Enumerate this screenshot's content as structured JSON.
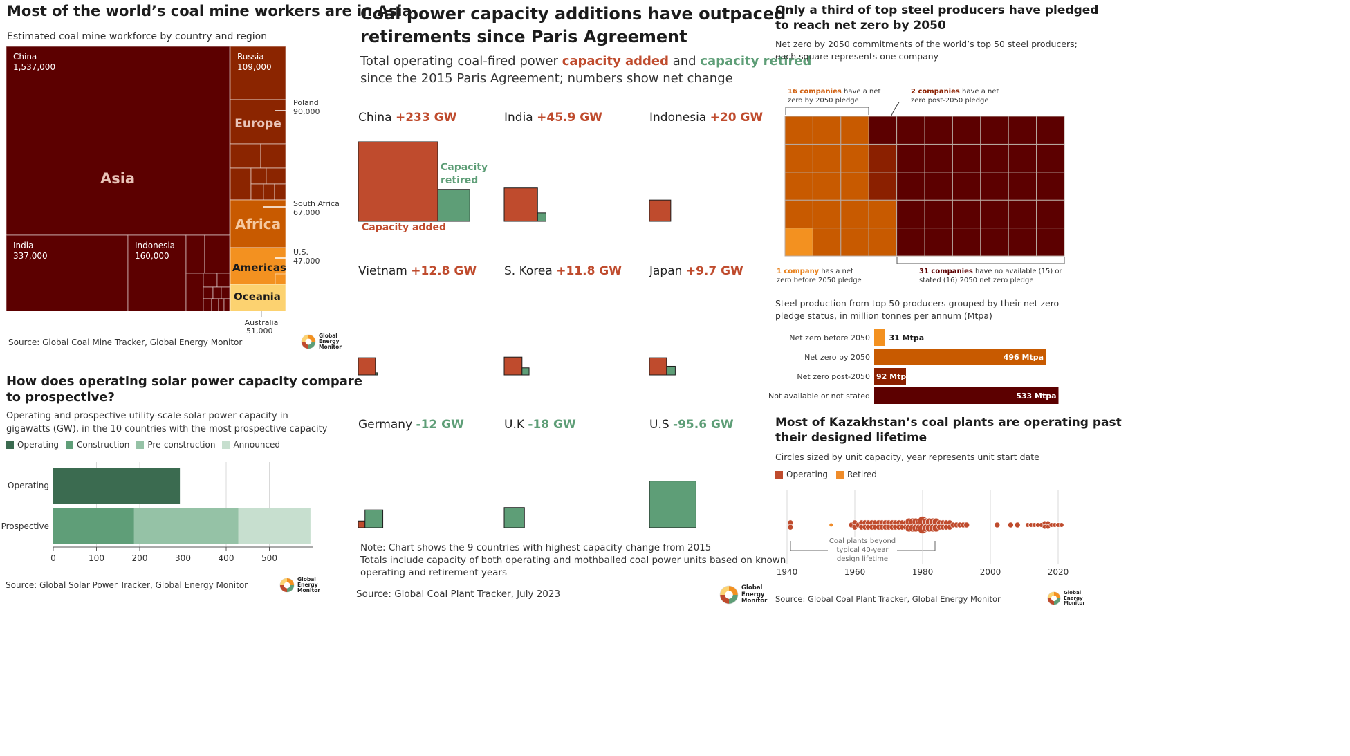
{
  "colors": {
    "dark": "#5c0000",
    "red": "#8b2500",
    "orange": "#c85a00",
    "lightorange": "#f39120",
    "yellow": "#fcd270",
    "added": "#bf4b2d",
    "retired": "#5e9e77",
    "op": "#3b6b50",
    "con": "#5f9e78",
    "pre": "#95c2a6",
    "ann": "#c7dfcf",
    "steel_before": "#f39120",
    "steel_by": "#c85a00",
    "steel_post": "#8b2000",
    "steel_na": "#5c0000",
    "kz_operating": "#bf4b2d",
    "kz_retired": "#ef8c2a"
  },
  "logo": {
    "l1": "Global",
    "l2": "Energy",
    "l3": "Monitor"
  },
  "treemap": {
    "title": "Most of the world’s coal mine workers are in Asia",
    "subtitle": "Estimated coal mine workforce by country and region",
    "source": "Source: Global Coal Mine Tracker, Global Energy Monitor",
    "regions": {
      "asia": "Asia",
      "europe": "Europe",
      "africa": "Africa",
      "americas": "Americas",
      "oceania": "Oceania"
    },
    "cells": {
      "china": {
        "name": "China",
        "value": "1,537,000"
      },
      "india": {
        "name": "India",
        "value": "337,000"
      },
      "indonesia": {
        "name": "Indonesia",
        "value": "160,000"
      },
      "russia": {
        "name": "Russia",
        "value": "109,000"
      }
    },
    "callouts": {
      "poland": {
        "name": "Poland",
        "value": "90,000"
      },
      "south_africa": {
        "name": "South Africa",
        "value": "67,000"
      },
      "us": {
        "name": "U.S.",
        "value": "47,000"
      },
      "australia": {
        "name": "Australia",
        "value": "51,000"
      }
    }
  },
  "solar": {
    "title_line1": "How does operating solar power capacity compare",
    "title_line2": "to prospective?",
    "subtitle_line1": "Operating and prospective utility-scale solar power capacity in",
    "subtitle_line2": "gigawatts (GW), in the 10 countries with the most prospective capacity",
    "legend": [
      "Operating",
      "Construction",
      "Pre-construction",
      "Announced"
    ],
    "source": "Source: Global Solar Power Tracker, Global Energy Monitor"
  },
  "coal": {
    "title_line1": "Coal power capacity additions have outpaced",
    "title_line2": "retirements since Paris Agreement",
    "subtitle_a": "Total operating coal-fired power ",
    "subtitle_added": "capacity added",
    "subtitle_and": " and ",
    "subtitle_retired": "capacity retired",
    "subtitle_line2": "since the 2015 Paris Agreement; numbers show net change",
    "label_added": "Capacity added",
    "label_retired_1": "Capacity",
    "label_retired_2": "retired",
    "note_line1": "Note: Chart shows the 9 countries with highest capacity change from 2015",
    "note_line2": "Totals include capacity of both operating and mothballed coal power units based on known",
    "note_line3": "operating and retirement years",
    "source": "Source: Global Coal Plant Tracker, July 2023"
  },
  "steel": {
    "title_line1": "Only a third of top steel producers have pledged",
    "title_line2": "to reach net zero by 2050",
    "subtitle_line1": "Net zero by 2050 commitments of the world’s top 50 steel producers;",
    "subtitle_line2": "each square represents one company",
    "ann_by_bold": "16 companies",
    "ann_by_rest": " have a net",
    "ann_by_line2": "zero by 2050 pledge",
    "ann_post_bold": "2 companies",
    "ann_post_rest": " have a net",
    "ann_post_line2": "zero post-2050 pledge",
    "ann_before_bold": "1 company",
    "ann_before_rest": " has a net",
    "ann_before_line2": "zero before 2050 pledge",
    "ann_na_bold": "31 companies",
    "ann_na_rest": " have no available (15) or",
    "ann_na_line2": "stated (16) 2050 net zero pledge",
    "bar_title_line1": "Steel production from top 50 producers grouped by their net zero",
    "bar_title_line2": "pledge status, in million tonnes per annum (Mtpa)"
  },
  "kz": {
    "title_line1": "Most of Kazakhstan’s coal plants are operating past",
    "title_line2": "their designed lifetime",
    "subtitle": "Circles sized by unit capacity, year represents unit start date",
    "legend": [
      "Operating",
      "Retired"
    ],
    "ann_line1": "Coal plants beyond",
    "ann_line2": "typical 40-year",
    "ann_line3": "design lifetime",
    "source": "Source: Global Coal Plant Tracker, Global Energy Monitor"
  },
  "chart_data": [
    {
      "type": "treemap",
      "title": "Most of the world’s coal mine workers are in Asia",
      "unit": "workers",
      "items": [
        {
          "region": "Asia",
          "name": "China",
          "value": 1537000
        },
        {
          "region": "Asia",
          "name": "India",
          "value": 337000
        },
        {
          "region": "Asia",
          "name": "Indonesia",
          "value": 160000
        },
        {
          "region": "Europe",
          "name": "Russia",
          "value": 109000
        },
        {
          "region": "Europe",
          "name": "Poland",
          "value": 90000
        },
        {
          "region": "Africa",
          "name": "South Africa",
          "value": 67000
        },
        {
          "region": "Americas",
          "name": "U.S.",
          "value": 47000
        },
        {
          "region": "Oceania",
          "name": "Australia",
          "value": 51000
        }
      ]
    },
    {
      "type": "bar",
      "stacked": true,
      "orientation": "horizontal",
      "title": "How does operating solar power capacity compare to prospective?",
      "categories": [
        "Operating",
        "Prospective"
      ],
      "series": [
        {
          "name": "Operating",
          "values": [
            293,
            0
          ]
        },
        {
          "name": "Construction",
          "values": [
            0,
            187
          ]
        },
        {
          "name": "Pre-construction",
          "values": [
            0,
            241
          ]
        },
        {
          "name": "Announced",
          "values": [
            0,
            167
          ]
        }
      ],
      "xlim": [
        0,
        600
      ],
      "ticks": [
        0,
        100,
        200,
        300,
        400,
        500
      ]
    },
    {
      "type": "bar",
      "title": "Coal power capacity additions have outpaced retirements since Paris Agreement",
      "unit": "GW",
      "encoding": "square area",
      "countries": [
        "China",
        "India",
        "Indonesia",
        "Vietnam",
        "S. Korea",
        "Japan",
        "Germany",
        "U.K",
        "U.S"
      ],
      "net_labels": [
        "+233 GW",
        "+45.9 GW",
        "+20 GW",
        "+12.8 GW",
        "+11.8 GW",
        "+9.7 GW",
        "-12 GW",
        "-18 GW",
        "-95.6 GW"
      ],
      "series": [
        {
          "name": "Capacity added",
          "values": [
            278,
            49,
            20,
            13,
            14,
            13,
            2,
            0,
            0
          ]
        },
        {
          "name": "Capacity retired",
          "values": [
            45,
            3.1,
            0,
            0.2,
            2.2,
            3.3,
            14,
            18,
            95.6
          ]
        }
      ]
    },
    {
      "type": "waffle",
      "title": "Only a third of top steel producers have pledged to reach net zero by 2050",
      "categories": [
        "Net zero before 2050",
        "Net zero by 2050",
        "Net zero post-2050",
        "Not available or not stated"
      ],
      "values": [
        1,
        16,
        2,
        31
      ]
    },
    {
      "type": "bar",
      "orientation": "horizontal",
      "title": "Steel production from top 50 producers grouped by their net zero pledge status, in million tonnes per annum (Mtpa)",
      "categories": [
        "Net zero before 2050",
        "Net zero by 2050",
        "Net zero post-2050",
        "Not available or not stated"
      ],
      "values": [
        31,
        496,
        92,
        533
      ],
      "value_labels": [
        "31 Mtpa",
        "496 Mtpa",
        "92 Mtpa",
        "533 Mtpa"
      ]
    },
    {
      "type": "scatter",
      "title": "Most of Kazakhstan’s coal plants are operating past their designed lifetime",
      "xlim": [
        1938,
        2023
      ],
      "ticks": [
        1940,
        1960,
        1980,
        2000,
        2020
      ],
      "series": [
        {
          "name": "Retired",
          "x": [
            1953
          ]
        },
        {
          "name": "Operating",
          "x": [
            1941,
            1941,
            1959,
            1960,
            1960,
            1961,
            1962,
            1962,
            1963,
            1963,
            1964,
            1964,
            1965,
            1965,
            1966,
            1966,
            1967,
            1967,
            1968,
            1968,
            1969,
            1969,
            1970,
            1970,
            1971,
            1971,
            1972,
            1972,
            1973,
            1973,
            1974,
            1974,
            1975,
            1975,
            1976,
            1976,
            1977,
            1977,
            1978,
            1978,
            1979,
            1979,
            1980,
            1980,
            1981,
            1981,
            1982,
            1982,
            1983,
            1983,
            1984,
            1984,
            1985,
            1985,
            1986,
            1986,
            1987,
            1987,
            1988,
            1988,
            1989,
            1990,
            1991,
            1992,
            1993,
            2002,
            2006,
            2008,
            2011,
            2012,
            2013,
            2014,
            2015,
            2016,
            2016,
            2017,
            2017,
            2018,
            2019,
            2020,
            2021
          ]
        }
      ]
    }
  ]
}
